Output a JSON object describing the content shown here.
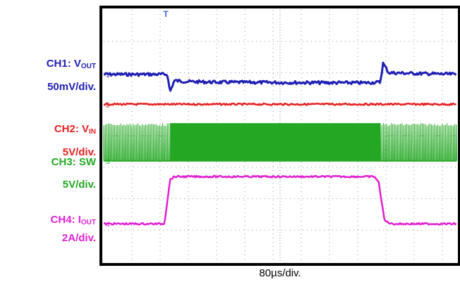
{
  "chart_data": {
    "type": "line",
    "title": "",
    "xlabel": "80µs/div.",
    "ylabel": "",
    "x_divisions": 10,
    "y_divisions": 8,
    "grid": true,
    "trigger_marker": "T",
    "event_times_div": [
      2.35,
      9.8
    ],
    "series": [
      {
        "name": "CH1: VOUT",
        "label_parts": [
          "CH1: V",
          "OUT"
        ],
        "scale": "50mV/div.",
        "color": "#1f1fb4",
        "marker": "1",
        "level_div": 5.95,
        "points_div": [
          [
            0,
            5.95
          ],
          [
            2.25,
            5.95
          ],
          [
            2.35,
            5.4
          ],
          [
            2.5,
            5.75
          ],
          [
            3.0,
            5.72
          ],
          [
            4.0,
            5.7
          ],
          [
            9.2,
            5.68
          ],
          [
            9.8,
            5.7
          ],
          [
            9.9,
            6.3
          ],
          [
            10.1,
            6.0
          ],
          [
            11.0,
            5.98
          ],
          [
            12.5,
            5.95
          ]
        ]
      },
      {
        "name": "CH2: VIN",
        "label_parts": [
          "CH2: V",
          "IN"
        ],
        "scale": "5V/div.",
        "color": "#e62020",
        "marker": "2",
        "level_div": 5.0,
        "points_div": [
          [
            0,
            5.0
          ],
          [
            12.5,
            5.0
          ]
        ]
      },
      {
        "name": "CH3: SW",
        "label_parts": [
          "CH3: SW",
          ""
        ],
        "scale": "5V/div.",
        "color": "#24a824",
        "marker": "3",
        "level_div": 3.2,
        "band_div": [
          3.2,
          4.4
        ],
        "dense_range_div": [
          2.35,
          9.8
        ]
      },
      {
        "name": "CH4: IOUT",
        "label_parts": [
          "CH4: I",
          "OUT"
        ],
        "scale": "2A/div.",
        "color": "#e020d0",
        "marker": "4",
        "level_div": 1.2,
        "points_div": [
          [
            0,
            1.2
          ],
          [
            2.15,
            1.2
          ],
          [
            2.35,
            2.6
          ],
          [
            2.5,
            2.7
          ],
          [
            9.6,
            2.7
          ],
          [
            9.75,
            2.5
          ],
          [
            9.95,
            1.3
          ],
          [
            10.2,
            1.2
          ],
          [
            12.5,
            1.2
          ]
        ]
      }
    ]
  }
}
